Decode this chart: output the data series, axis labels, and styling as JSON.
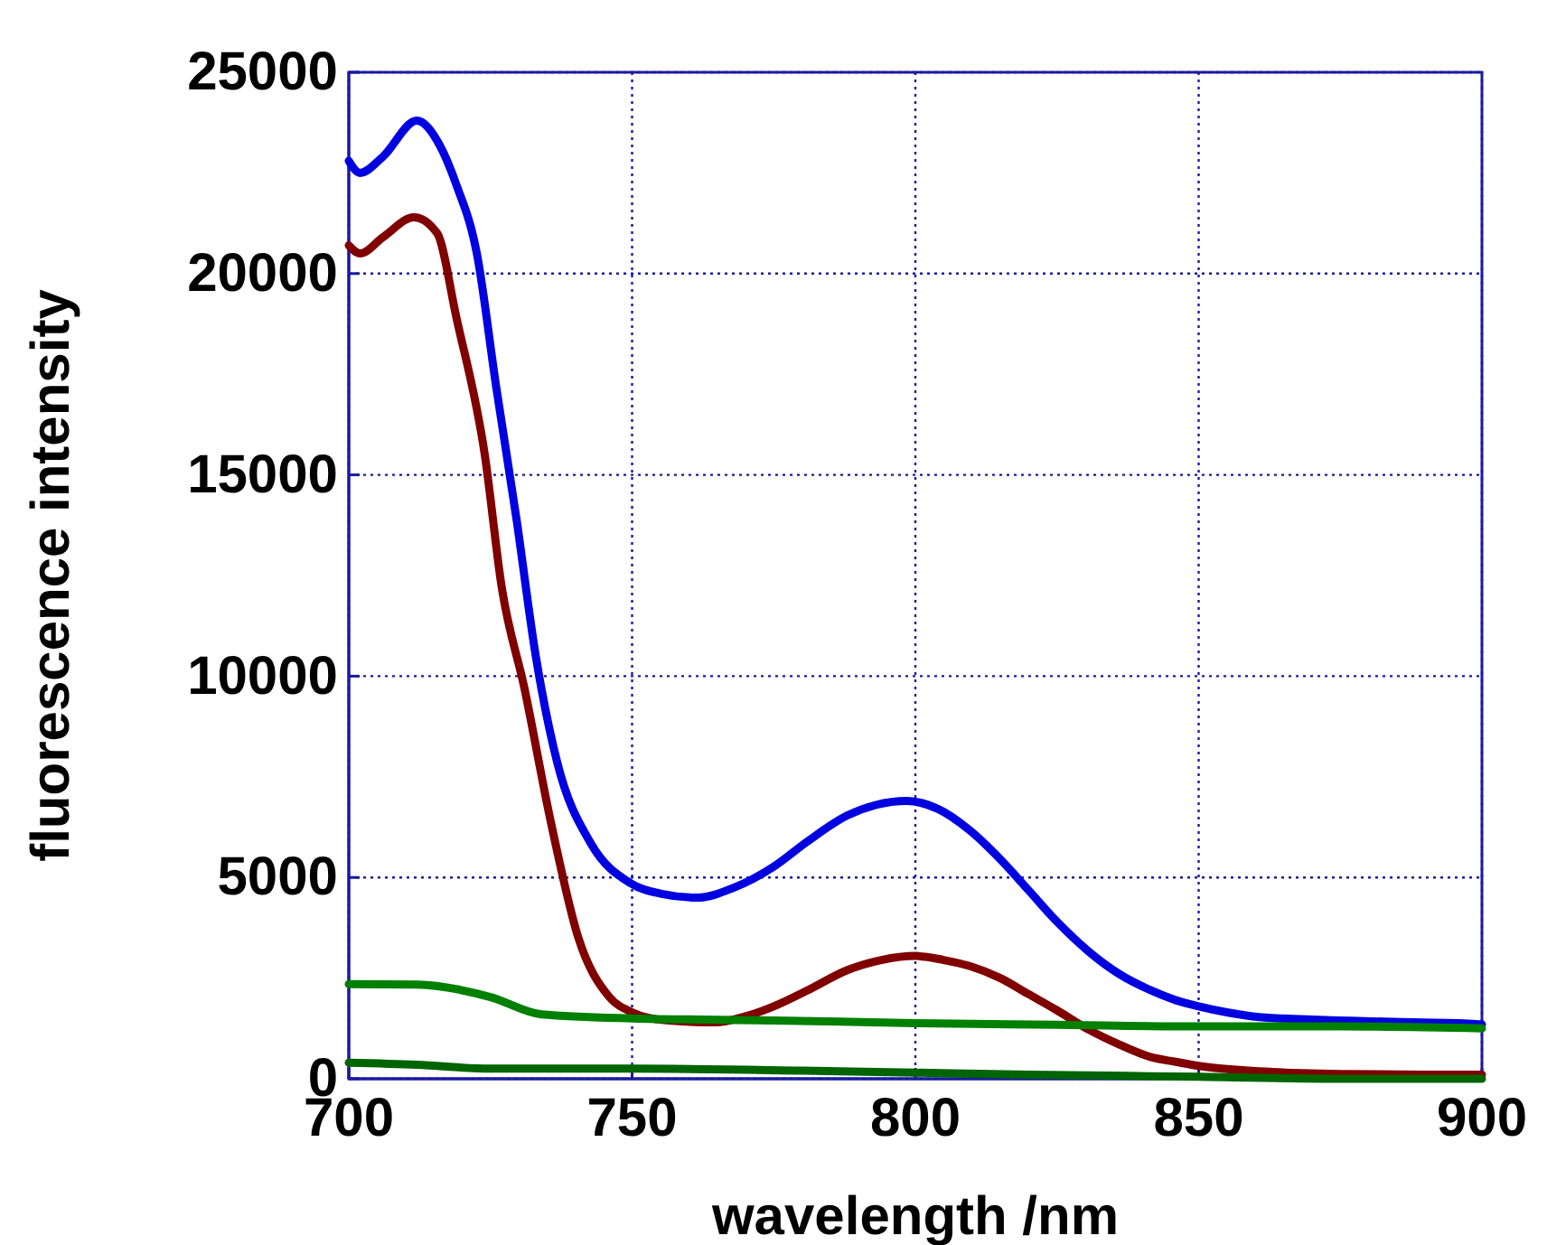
{
  "chart_data": {
    "type": "line",
    "xlabel": "wavelength /nm",
    "ylabel": "fluorescence intensity",
    "xlim": [
      700,
      900
    ],
    "ylim": [
      0,
      25000
    ],
    "xticks": [
      700,
      750,
      800,
      850,
      900
    ],
    "yticks": [
      0,
      5000,
      10000,
      15000,
      20000,
      25000
    ],
    "grid": true,
    "marker": "none",
    "line_style": "solid",
    "series": [
      {
        "color": "#0000e0",
        "x": [
          700,
          702,
          706,
          712,
          716,
          719,
          722.6,
          726,
          729.6,
          733,
          736.8,
          742.7,
          749.7,
          755,
          761.5,
          768,
          775,
          781,
          788,
          793,
          798.5,
          804,
          809.6,
          815,
          820,
          825,
          830.6,
          836,
          841.5,
          846,
          850,
          855,
          860.7,
          868,
          876.7,
          888,
          899,
          900
        ],
        "values": [
          22800,
          22500,
          22900,
          23800,
          23200,
          22200,
          20500,
          17200,
          13900,
          10500,
          7850,
          5850,
          4860,
          4600,
          4500,
          4750,
          5270,
          5900,
          6540,
          6800,
          6900,
          6700,
          6170,
          5450,
          4680,
          3900,
          3160,
          2600,
          2200,
          1950,
          1800,
          1650,
          1530,
          1480,
          1440,
          1400,
          1360,
          1350
        ]
      },
      {
        "color": "#800000",
        "x": [
          700,
          702,
          706,
          711.5,
          715.6,
          719,
          724,
          727,
          731,
          735.7,
          740.5,
          746,
          750,
          756,
          764.6,
          770,
          775,
          781,
          788,
          794,
          800,
          805,
          809.6,
          815,
          820,
          825,
          830.6,
          836,
          841.5,
          846,
          850,
          856,
          863,
          875,
          890,
          900
        ],
        "values": [
          20700,
          20500,
          20900,
          21400,
          21000,
          18900,
          15500,
          12200,
          9700,
          6350,
          3510,
          2030,
          1650,
          1450,
          1400,
          1550,
          1800,
          2200,
          2700,
          2950,
          3050,
          2950,
          2800,
          2500,
          2100,
          1700,
          1220,
          850,
          540,
          420,
          320,
          230,
          170,
          120,
          100,
          100
        ]
      },
      {
        "color": "#008000",
        "x": [
          700,
          712,
          725,
          734,
          750,
          775,
          800,
          825,
          850,
          875,
          900
        ],
        "values": [
          2350,
          2340,
          2030,
          1600,
          1500,
          1450,
          1380,
          1340,
          1300,
          1300,
          1250
        ]
      },
      {
        "color": "#006400",
        "x": [
          700,
          712,
          725,
          750,
          780,
          800,
          820,
          850,
          875,
          900
        ],
        "values": [
          400,
          350,
          250,
          250,
          200,
          150,
          100,
          50,
          0,
          0
        ]
      }
    ]
  }
}
